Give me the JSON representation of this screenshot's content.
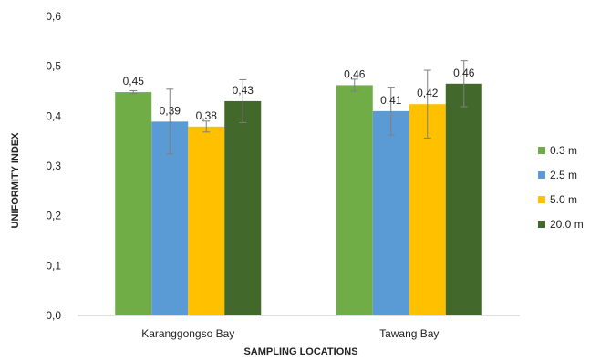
{
  "chart_data": {
    "type": "bar",
    "xlabel": "SAMPLING LOCATIONS",
    "ylabel": "UNIFORMITY INDEX",
    "ylim": [
      0,
      0.6
    ],
    "yticks": [
      "0,0",
      "0,1",
      "0,2",
      "0,3",
      "0,4",
      "0,5",
      "0,6"
    ],
    "grid": false,
    "legend": "right",
    "categories": [
      "Karanggongso Bay",
      "Tawang Bay"
    ],
    "series": [
      {
        "name": "0.3 m",
        "color": "#70AD47",
        "values": [
          0.448,
          0.462
        ],
        "errors": [
          0.003,
          0.012
        ],
        "labels": [
          "0,45",
          "0,46"
        ]
      },
      {
        "name": "2.5 m",
        "color": "#5B9BD5",
        "values": [
          0.389,
          0.41
        ],
        "errors": [
          0.065,
          0.048
        ],
        "labels": [
          "0,39",
          "0,41"
        ]
      },
      {
        "name": "5.0 m",
        "color": "#FFC000",
        "values": [
          0.379,
          0.424
        ],
        "errors": [
          0.011,
          0.068
        ],
        "labels": [
          "0,38",
          "0,42"
        ]
      },
      {
        "name": "20.0 m",
        "color": "#43682B",
        "values": [
          0.43,
          0.465
        ],
        "errors": [
          0.043,
          0.046
        ],
        "labels": [
          "0,43",
          "0,46"
        ]
      }
    ]
  }
}
